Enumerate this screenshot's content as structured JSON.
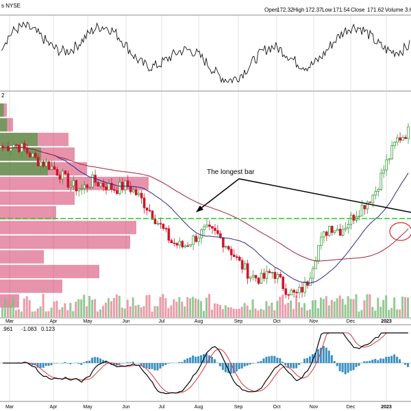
{
  "header": {
    "symbol_exchange": "s NYSE",
    "open_label": "Open",
    "open_value": "172.32",
    "high_label": "High",
    "high_value": "172.37",
    "low_label": "Low",
    "low_value": "171.54",
    "close_label": "Close",
    "close_value": "171.62",
    "volume_label": "Volume",
    "volume_value": "3.6"
  },
  "price_panel": {
    "corner_label": "2"
  },
  "macd_panel": {
    "v1": ".961",
    "v2": "-1.083",
    "v3": "0.123"
  },
  "annotation": {
    "text": "The longest bar"
  },
  "colors": {
    "up": "#3a9a3a",
    "down": "#d0142c",
    "vp_green": "#2e9a2e",
    "vp_red": "#d23a66",
    "sma_short": "#2a2a8a",
    "sma_long": "#a0203a",
    "support": "#22cc22",
    "macd_line": "#000000",
    "signal_line": "#e03030",
    "histogram": "#3a8fc0",
    "grid": "#cfcfcf"
  },
  "chart_data": {
    "type": "candlestick",
    "x_tick_labels": [
      "Mar",
      "Apr",
      "May",
      "Jun",
      "Jul",
      "Aug",
      "Sep",
      "Oct",
      "Nov",
      "Dec",
      "2023"
    ],
    "grid": true,
    "series": [
      {
        "name": "price",
        "shape": [
          0.78,
          0.8,
          0.77,
          0.72,
          0.7,
          0.66,
          0.6,
          0.58,
          0.62,
          0.6,
          0.58,
          0.6,
          0.55,
          0.48,
          0.4,
          0.32,
          0.3,
          0.34,
          0.38,
          0.36,
          0.3,
          0.22,
          0.16,
          0.14,
          0.18,
          0.1,
          0.06,
          0.12,
          0.3,
          0.4,
          0.38,
          0.44,
          0.5,
          0.56,
          0.7,
          0.82,
          0.86
        ]
      },
      {
        "name": "volume profile",
        "levels": 14
      },
      {
        "name": "short moving average"
      },
      {
        "name": "long moving average"
      },
      {
        "name": "MACD"
      },
      {
        "name": "signal"
      },
      {
        "name": "histogram"
      }
    ]
  }
}
